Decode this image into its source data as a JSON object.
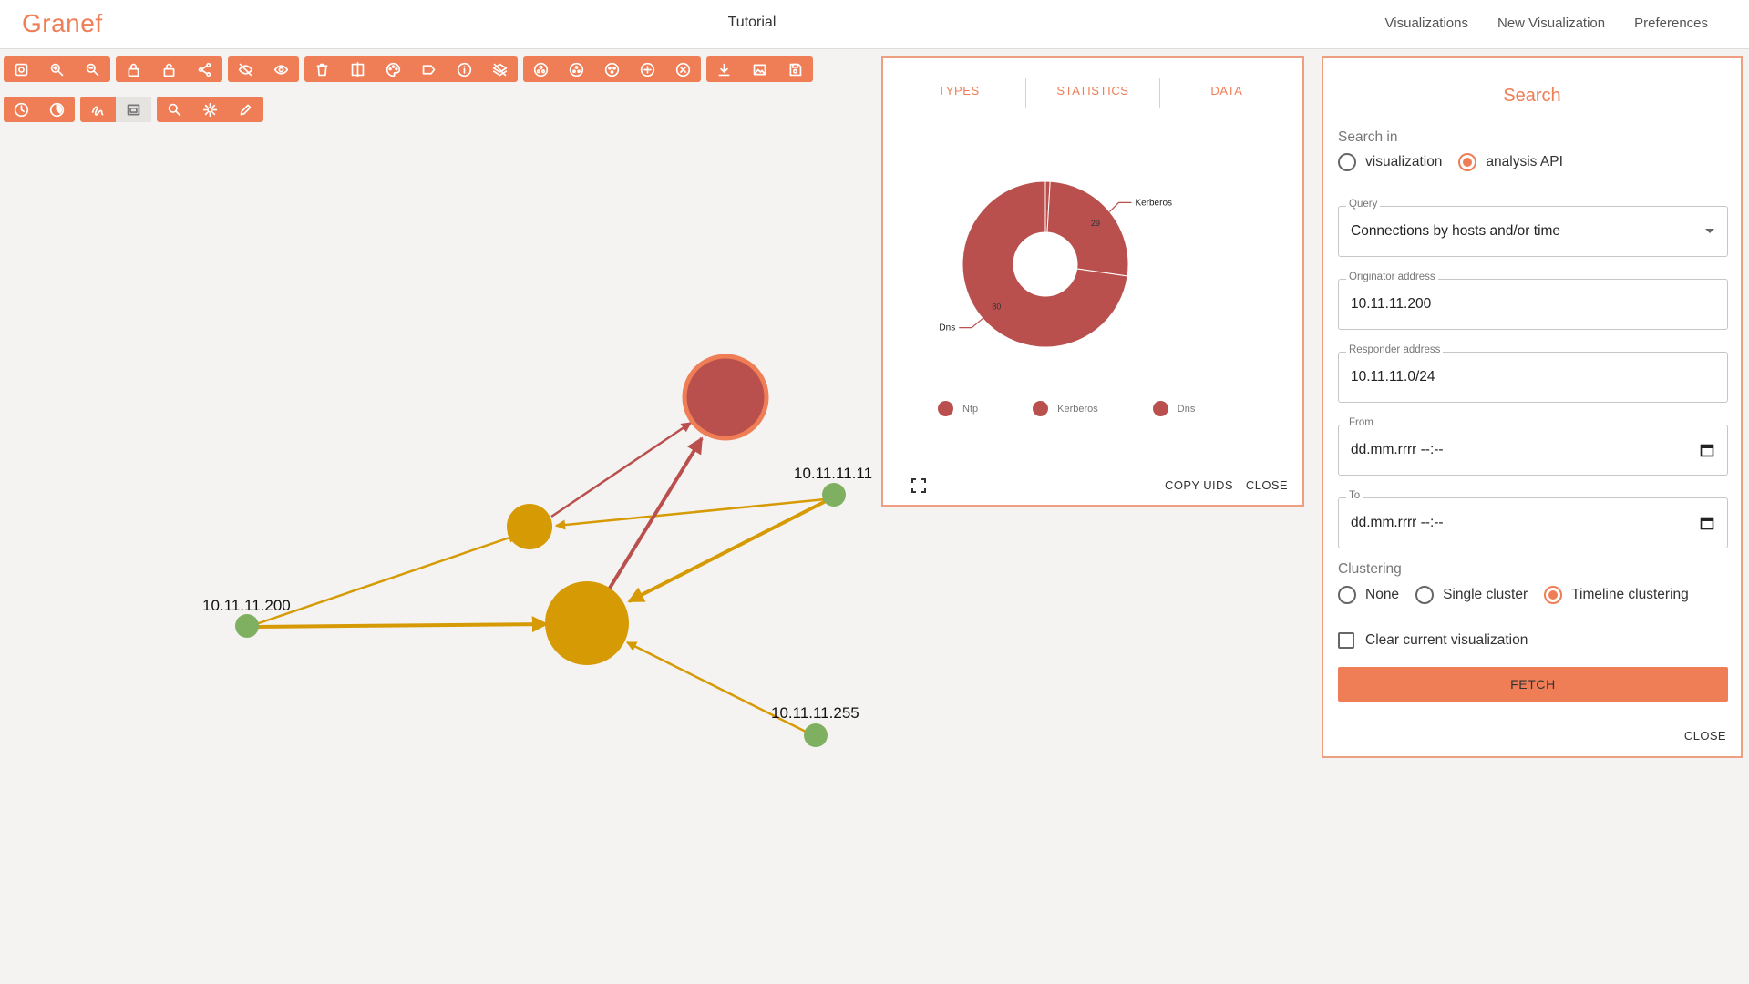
{
  "header": {
    "logo": "Granef",
    "title": "Tutorial",
    "nav": [
      "Visualizations",
      "New Visualization",
      "Preferences"
    ]
  },
  "toolbar": {
    "row1": [
      [
        "fit-icon",
        "zoom-in-icon",
        "zoom-out-icon"
      ],
      [
        "lock-icon",
        "unlock-icon",
        "share-icon"
      ],
      [
        "hide-icon",
        "show-icon"
      ],
      [
        "delete-icon",
        "split-icon",
        "palette-icon",
        "label-icon",
        "info-icon",
        "layers-off-icon"
      ],
      [
        "cluster-icon",
        "cluster-outline-icon",
        "cluster-alt-icon",
        "add-circle-icon",
        "remove-circle-icon"
      ],
      [
        "download-icon",
        "image-icon",
        "save-icon"
      ]
    ],
    "row2": [
      [
        "clock-icon",
        "timelapse-icon"
      ],
      [
        "gesture-icon",
        "panel-icon"
      ],
      [
        "search-icon",
        "settings-icon",
        "edit-icon"
      ]
    ],
    "row2_active": "panel-icon"
  },
  "graph": {
    "labels": {
      "n200": "10.11.11.200",
      "n11": "10.11.11.11",
      "n255": "10.11.11.255"
    },
    "colors": {
      "host": "#7fb062",
      "conn": "#d69a04",
      "service": "#b9504d",
      "highlight": "#ef7e56"
    }
  },
  "types_panel": {
    "tabs": [
      "TYPES",
      "STATISTICS",
      "DATA"
    ],
    "actions": [
      "COPY UIDS",
      "CLOSE"
    ]
  },
  "chart_data": {
    "type": "pie",
    "donut": true,
    "categories": [
      "Ntp",
      "Kerberos",
      "Dns"
    ],
    "values": [
      1,
      29,
      80
    ],
    "data_labels": [
      "",
      "29",
      "80"
    ],
    "slice_labels": [
      "",
      "Kerberos",
      "Dns"
    ],
    "legend": [
      "Ntp",
      "Kerberos",
      "Dns"
    ],
    "legend_position": "bottom",
    "color": "#b9504d"
  },
  "search": {
    "title": "Search",
    "search_in_label": "Search in",
    "search_in_options": [
      "visualization",
      "analysis API"
    ],
    "search_in_selected": "analysis API",
    "query_label": "Query",
    "query_value": "Connections by hosts and/or time",
    "originator_label": "Originator address",
    "originator_value": "10.11.11.200",
    "responder_label": "Responder address",
    "responder_value": "10.11.11.0/24",
    "from_label": "From",
    "from_value": "dd.mm.rrrr --:--",
    "to_label": "To",
    "to_value": "dd.mm.rrrr --:--",
    "clustering_label": "Clustering",
    "clustering_options": [
      "None",
      "Single cluster",
      "Timeline clustering"
    ],
    "clustering_selected": "Timeline clustering",
    "clear_label": "Clear current visualization",
    "fetch_label": "FETCH",
    "close_label": "CLOSE"
  }
}
